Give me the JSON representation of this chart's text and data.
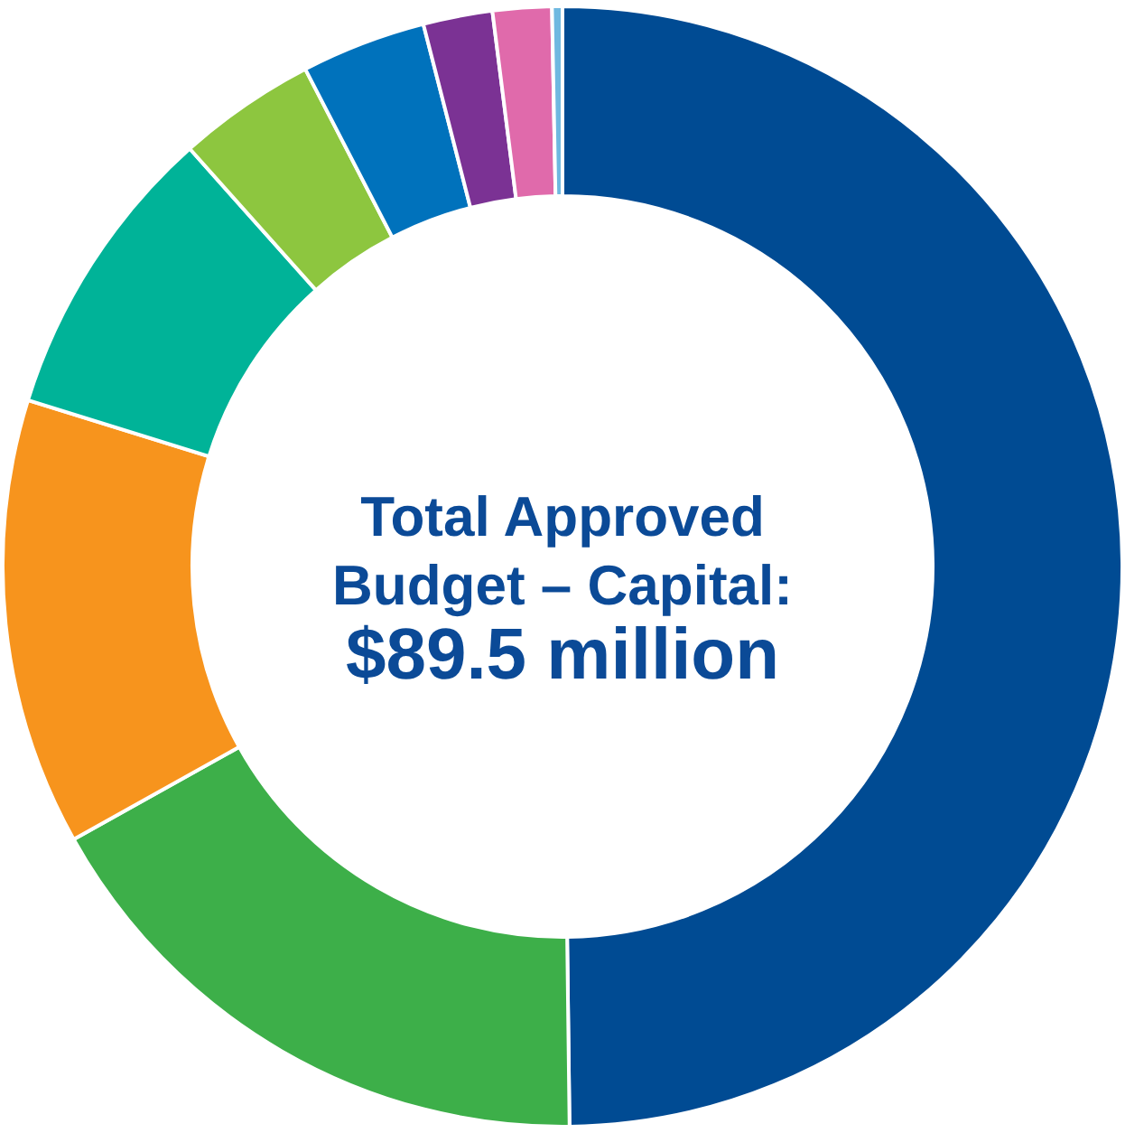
{
  "chart_data": {
    "type": "donut",
    "categories": [
      null,
      null,
      null,
      null,
      null,
      null,
      null,
      null,
      null
    ],
    "values": [
      49.8,
      17.1,
      12.9,
      8.6,
      4.0,
      3.6,
      2.0,
      1.7,
      0.3
    ],
    "colors": [
      "#004b93",
      "#3daf49",
      "#f7941d",
      "#00b398",
      "#8dc63f",
      "#0072bc",
      "#7b3294",
      "#e06aab",
      "#6fb8e0"
    ],
    "annotations": [
      "Total Approved Budget – Capital:",
      "$89.5 million"
    ]
  }
}
